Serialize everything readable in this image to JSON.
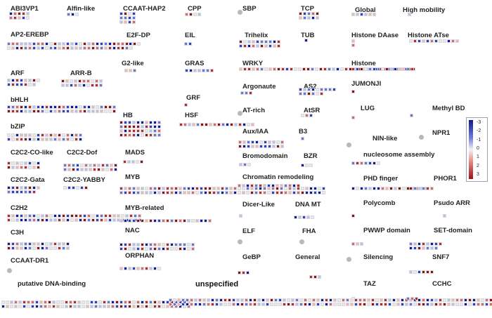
{
  "chart_data": {
    "type": "heatmap",
    "title": "",
    "legend": {
      "position": "right",
      "ticks": [
        "-3",
        "-2",
        "-1",
        "0",
        "1",
        "2",
        "3"
      ],
      "colors": {
        "negative": "#0a1a9a",
        "zero": "#f2f2f2",
        "positive": "#a01010"
      }
    },
    "families": [
      {
        "label": "ABI3VP1",
        "cells": 10
      },
      {
        "label": "Alfin-like",
        "cells": 3
      },
      {
        "label": "CCAAT-HAP2",
        "cells": 12
      },
      {
        "label": "CPP",
        "cells": 4
      },
      {
        "label": "SBP",
        "cells": 0
      },
      {
        "label": "TCP",
        "cells": 10
      },
      {
        "label": "Global",
        "cells": 6
      },
      {
        "label": "High mobility",
        "cells": 1
      },
      {
        "label": "AP2-EREBP",
        "cells": 60
      },
      {
        "label": "E2F-DP",
        "cells": 3
      },
      {
        "label": "EIL",
        "cells": 2
      },
      {
        "label": "Trihelix",
        "cells": 20
      },
      {
        "label": "TUB",
        "cells": 1
      },
      {
        "label": "Histone DAase",
        "cells": 2
      },
      {
        "label": "Histone ATse",
        "cells": 12
      },
      {
        "label": "G2-like",
        "cells": 3
      },
      {
        "label": "GRAS",
        "cells": 7
      },
      {
        "label": "WRKY",
        "cells": 42
      },
      {
        "label": "Histone",
        "cells": 15
      },
      {
        "label": "ARF",
        "cells": 15
      },
      {
        "label": "ARR-B",
        "cells": 20
      },
      {
        "label": "Argonaute",
        "cells": 3
      },
      {
        "label": "AS2",
        "cells": 15
      },
      {
        "label": "JUMONJI",
        "cells": 1
      },
      {
        "label": "GRF",
        "cells": 1
      },
      {
        "label": "bHLH",
        "cells": 52
      },
      {
        "label": "AT-rich",
        "cells": 0
      },
      {
        "label": "AtSR",
        "cells": 3
      },
      {
        "label": "LUG",
        "cells": 1
      },
      {
        "label": "Methyl BD",
        "cells": 1
      },
      {
        "label": "HB",
        "cells": 40
      },
      {
        "label": "HSF",
        "cells": 18
      },
      {
        "label": "bZIP",
        "cells": 36
      },
      {
        "label": "Aux/IAA",
        "cells": 22
      },
      {
        "label": "B3",
        "cells": 1
      },
      {
        "label": "NIN-like",
        "cells": 0
      },
      {
        "label": "NPR1",
        "cells": 0
      },
      {
        "label": "C2C2-CO-like",
        "cells": 16
      },
      {
        "label": "C2C2-Dof",
        "cells": 26
      },
      {
        "label": "MADS",
        "cells": 5
      },
      {
        "label": "Bromodomain",
        "cells": 3
      },
      {
        "label": "BZR",
        "cells": 3
      },
      {
        "label": "nucleosome assembly",
        "cells": 7
      },
      {
        "label": "C2C2-Gata",
        "cells": 15
      },
      {
        "label": "C2C2-YABBY",
        "cells": 6
      },
      {
        "label": "MYB",
        "cells": 98
      },
      {
        "label": "Chromatin remodeling",
        "cells": 15
      },
      {
        "label": "PHD finger",
        "cells": 18
      },
      {
        "label": "PHOR1",
        "cells": 6
      },
      {
        "label": "C2H2",
        "cells": 64
      },
      {
        "label": "MYB-related",
        "cells": 22
      },
      {
        "label": "Dicer-Like",
        "cells": 1
      },
      {
        "label": "DNA MT",
        "cells": 5
      },
      {
        "label": "Polycomb",
        "cells": 1
      },
      {
        "label": "Psudo ARR",
        "cells": 1
      },
      {
        "label": "C3H",
        "cells": 30
      },
      {
        "label": "NAC",
        "cells": 36
      },
      {
        "label": "ELF",
        "cells": 0
      },
      {
        "label": "FHA",
        "cells": 0
      },
      {
        "label": "PWWP domain",
        "cells": 3
      },
      {
        "label": "SET-domain",
        "cells": 15
      },
      {
        "label": "ORPHAN",
        "cells": 10
      },
      {
        "label": "CCAAT-DR1",
        "cells": 0
      },
      {
        "label": "GeBP",
        "cells": 3
      },
      {
        "label": "General",
        "cells": 3
      },
      {
        "label": "Silencing",
        "cells": 0
      },
      {
        "label": "SNF7",
        "cells": 6
      },
      {
        "label": "putative DNA-binding",
        "cells": 90
      },
      {
        "label": "unspecified",
        "cells": 160
      },
      {
        "label": "TAZ",
        "cells": 1
      },
      {
        "label": "CCHC",
        "cells": 3
      }
    ]
  }
}
